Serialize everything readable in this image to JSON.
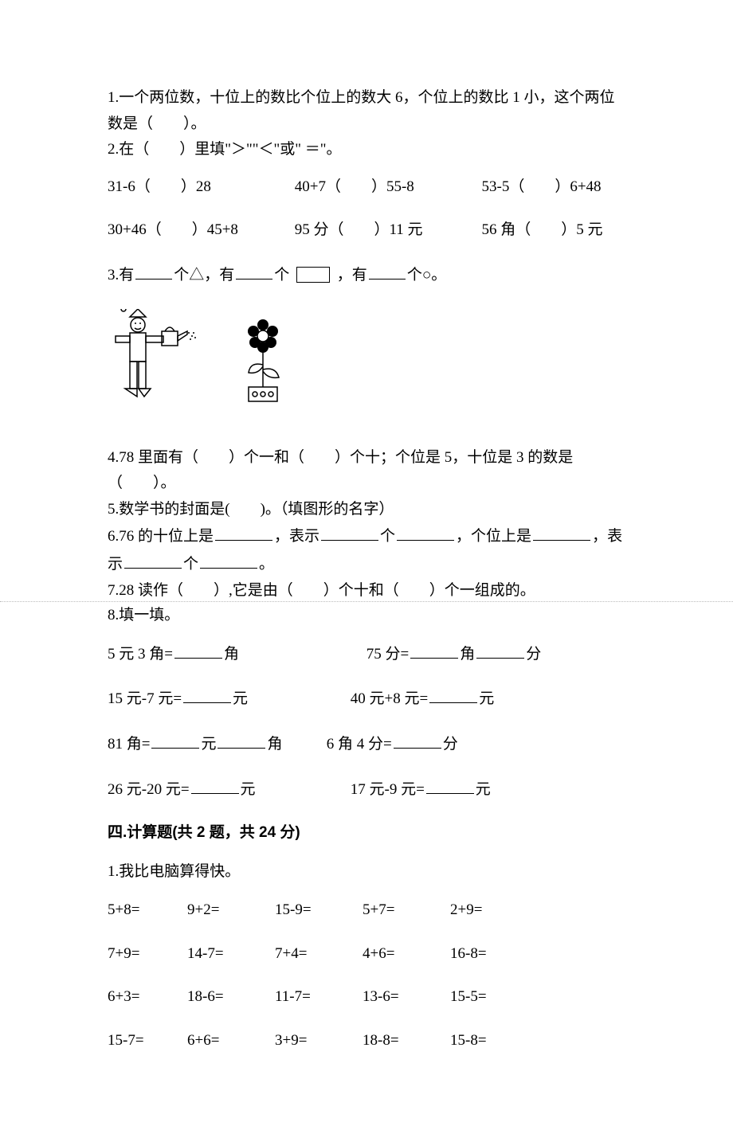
{
  "q1": {
    "text_a": "1.一个两位数，十位上的数比个位上的数大 6，个位上的数比 1 小，这个两位",
    "text_b": "数是（　　）。"
  },
  "q2": {
    "header": "2.在（　　）里填\"＞\"\"＜\"或\" ＝\"。",
    "row1": {
      "c1": "31-6（　　）28",
      "c2": "40+7（　　）55-8",
      "c3": "53-5（　　）6+48"
    },
    "row2": {
      "c1": "30+46（　　）45+8",
      "c2": "95 分（　　）11 元",
      "c3": "56 角（　　）5 元"
    }
  },
  "q3": {
    "a": "3.有",
    "b": "个△，有",
    "c": "个",
    "d": "，有",
    "e": "个○。"
  },
  "q4": {
    "a": "4.78 里面有（　　）个一和（　　）个十；个位是 5，十位是 3 的数是",
    "b": "（　　）。"
  },
  "q5": "5.数学书的封面是(　　)。（填图形的名字）",
  "q6": {
    "a": "6.76 的十位上是",
    "b": "，表示",
    "c": "个",
    "d": "，个位上是",
    "e": "，表",
    "f": "示",
    "g": "个",
    "h": "。"
  },
  "q7": "7.28 读作（　　）,它是由（　　）个十和（　　）个一组成的。",
  "q8": {
    "header": "8.填一填。",
    "r1": {
      "left_a": "5 元 3 角=",
      "left_b": "角",
      "right_a": "75 分=",
      "right_b": "角",
      "right_c": "分"
    },
    "r2": {
      "left_a": "15 元-7 元=",
      "left_b": "元",
      "right_a": "40 元+8 元=",
      "right_b": "元"
    },
    "r3": {
      "left_a": "81 角=",
      "left_b": "元",
      "left_c": "角",
      "right_a": "6 角 4 分=",
      "right_b": "分"
    },
    "r4": {
      "left_a": "26 元-20 元=",
      "left_b": "元",
      "right_a": "17 元-9 元=",
      "right_b": "元"
    }
  },
  "section4": "四.计算题(共 2 题，共 24 分)",
  "calc": {
    "header": "1.我比电脑算得快。",
    "rows": [
      [
        "5+8=",
        "9+2=",
        "15-9=",
        "5+7=",
        "2+9="
      ],
      [
        "7+9=",
        "14-7=",
        "7+4=",
        "4+6=",
        "16-8="
      ],
      [
        "6+3=",
        "18-6=",
        "11-7=",
        "13-6=",
        "15-5="
      ],
      [
        "15-7=",
        "6+6=",
        "3+9=",
        "18-8=",
        "15-8="
      ]
    ]
  },
  "colors": {
    "text": "#000000",
    "background": "#ffffff",
    "dotted": "#bbbbbb"
  }
}
